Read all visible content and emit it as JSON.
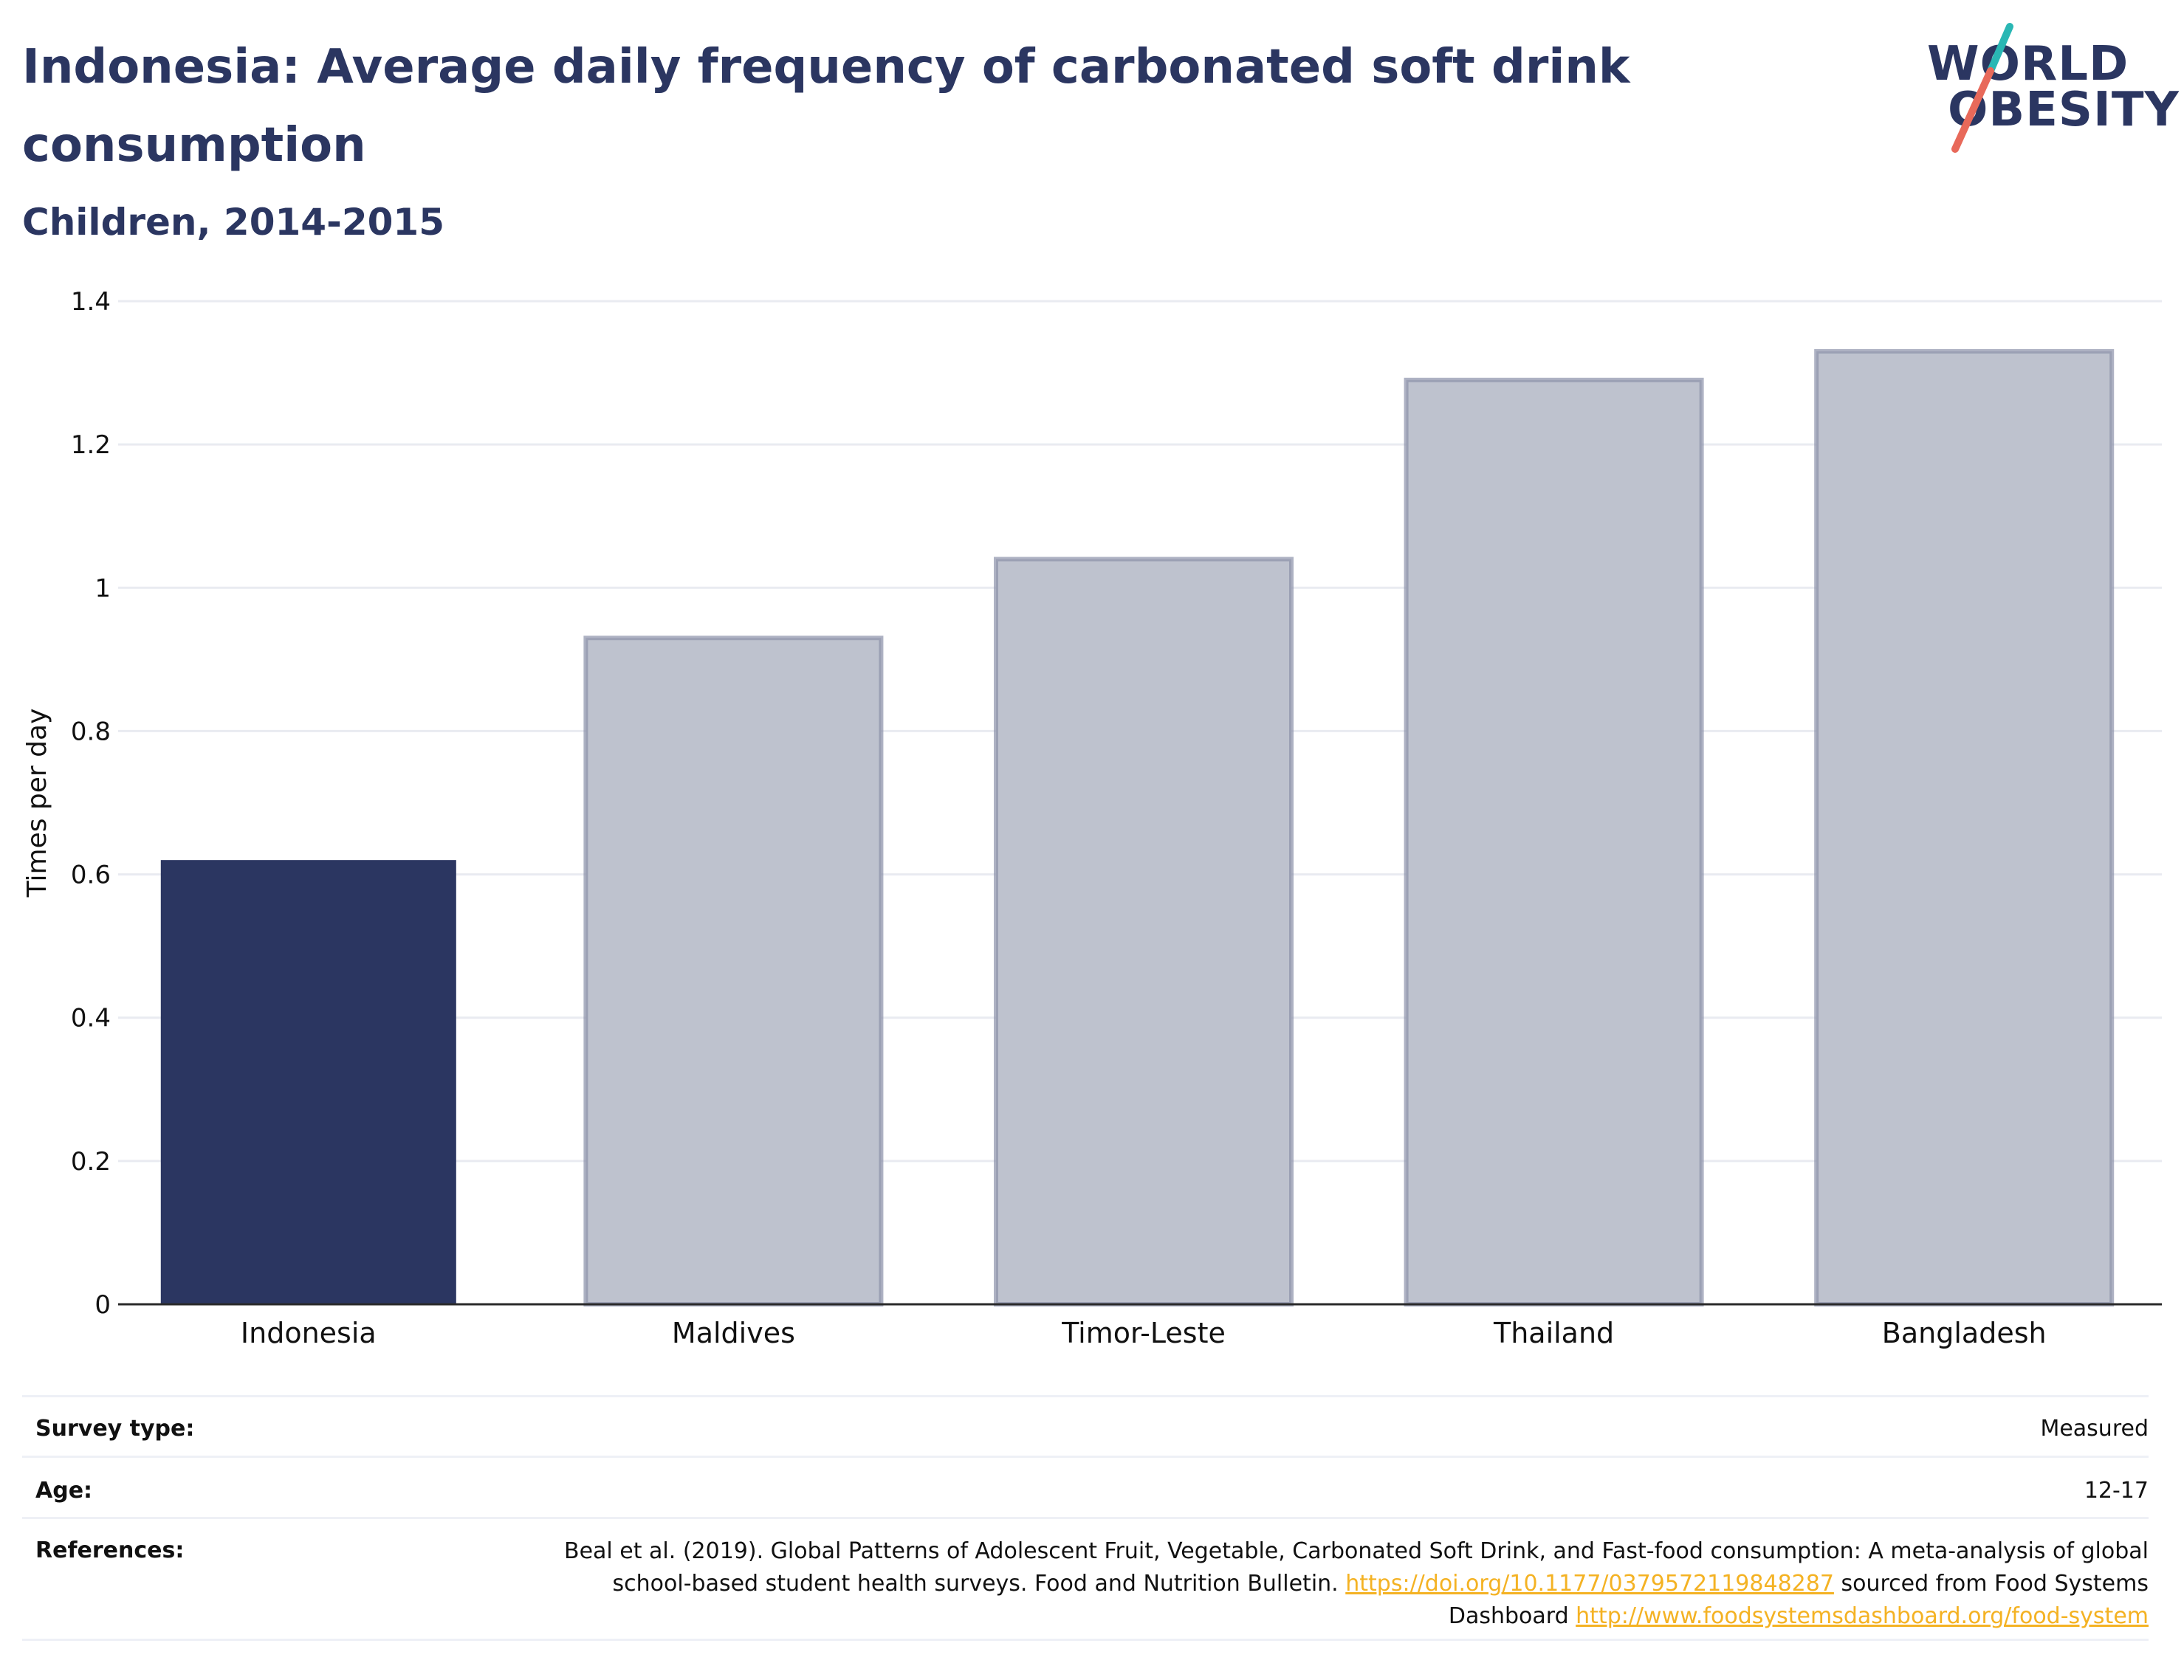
{
  "header": {
    "title": "Indonesia: Average daily frequency of carbonated soft drink consumption",
    "subtitle": "Children, 2014-2015"
  },
  "logo": {
    "line1": "WORLD",
    "line2": "OBESITY",
    "accent_teal": "#2ab7b4",
    "accent_coral": "#e8695a"
  },
  "chart_data": {
    "type": "bar",
    "categories": [
      "Indonesia",
      "Maldives",
      "Timor-Leste",
      "Thailand",
      "Bangladesh"
    ],
    "values": [
      0.62,
      0.93,
      1.04,
      1.29,
      1.33
    ],
    "highlight": "Indonesia",
    "ylabel": "Times per day",
    "xlabel": "",
    "ylim": [
      0,
      1.4
    ],
    "yticks": [
      0,
      0.2,
      0.4,
      0.6,
      0.8,
      1,
      1.2,
      1.4
    ],
    "ytick_labels": [
      "0",
      "0.2",
      "0.4",
      "0.6",
      "0.8",
      "1",
      "1.2",
      "1.4"
    ],
    "grid": true,
    "colors": {
      "highlight": "#2b3661",
      "other_fill": "#bec2ce",
      "other_stroke": "#8b92a9"
    }
  },
  "meta": {
    "survey_type_label": "Survey type:",
    "survey_type_value": "Measured",
    "age_label": "Age:",
    "age_value": "12-17",
    "references_label": "References:",
    "references_text_1": "Beal et al. (2019). Global Patterns of Adolescent Fruit, Vegetable, Carbonated Soft Drink, and Fast-food consumption: A meta-analysis of global school-based student health surveys. Food and Nutrition Bulletin. ",
    "references_link_1": "https://doi.org/10.1177/0379572119848287",
    "references_text_2": " sourced from Food Systems Dashboard ",
    "references_link_2": "http://www.foodsystemsdashboard.org/food-system"
  }
}
